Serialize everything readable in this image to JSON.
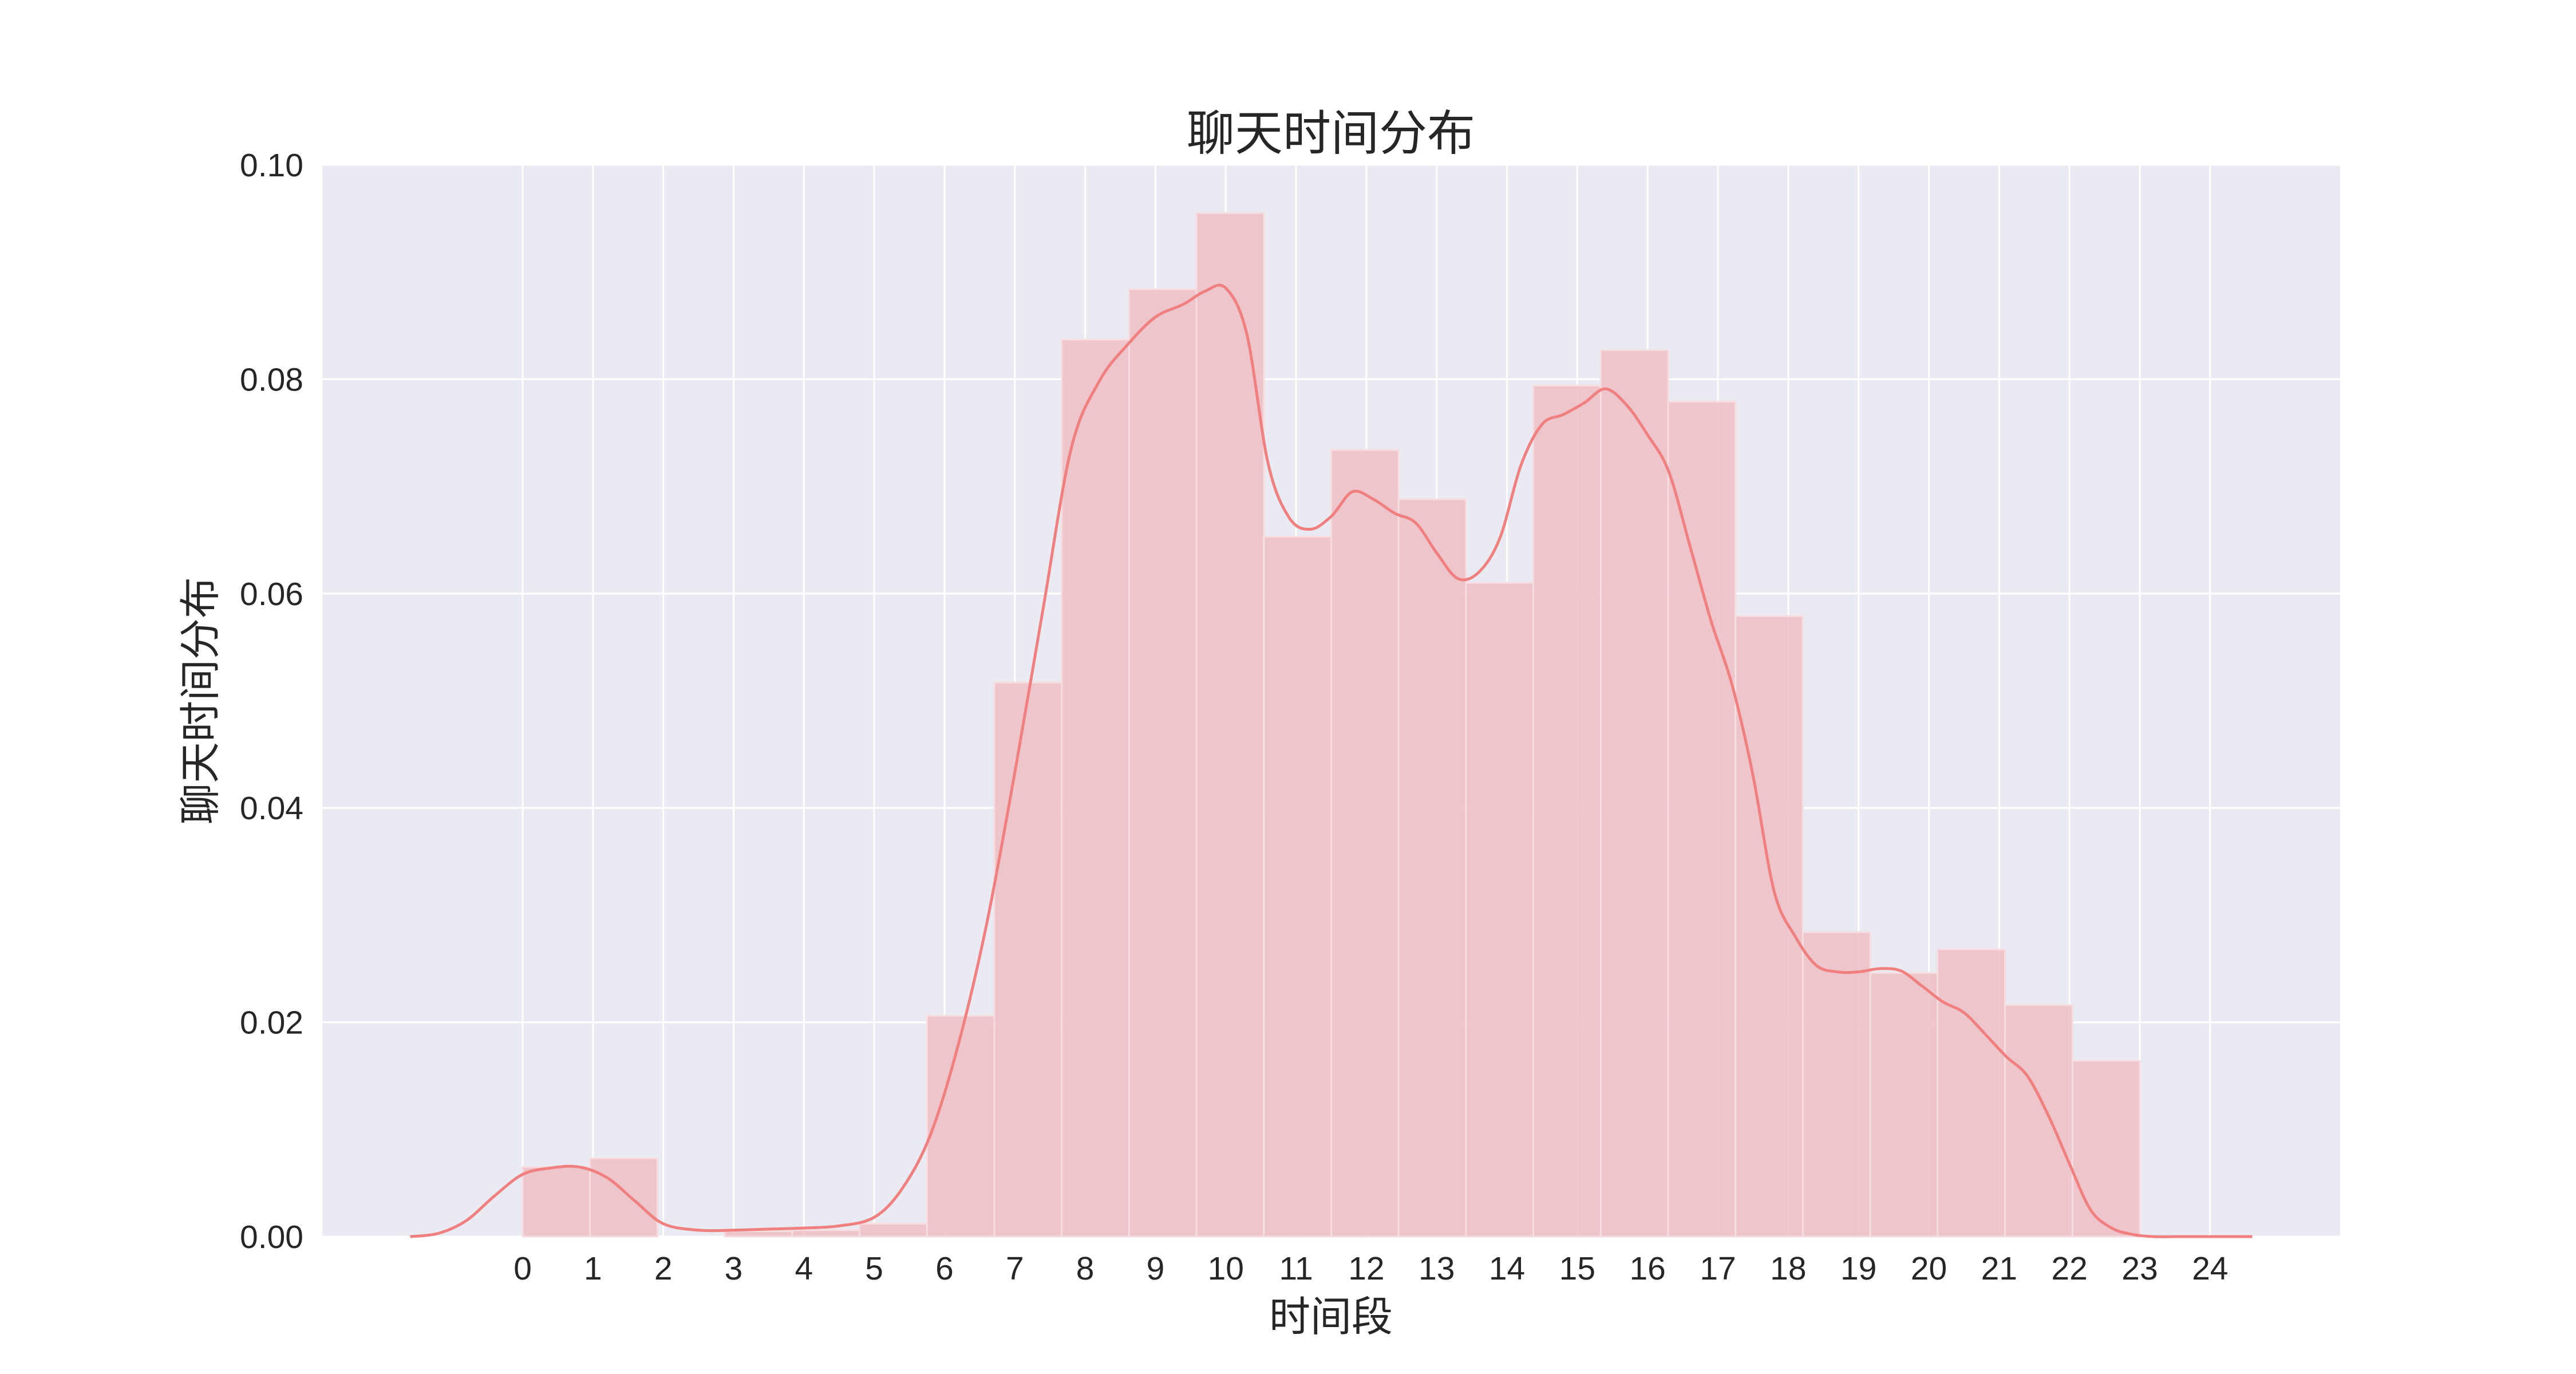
{
  "chart_data": {
    "type": "bar",
    "title": "聊天时间分布",
    "xlabel": "时间段",
    "ylabel": "聊天时间分布",
    "x_ticks": [
      0,
      1,
      2,
      3,
      4,
      5,
      6,
      7,
      8,
      9,
      10,
      11,
      12,
      13,
      14,
      15,
      16,
      17,
      18,
      19,
      20,
      21,
      22,
      23,
      24
    ],
    "x_tick_labels": [
      "0",
      "1",
      "2",
      "3",
      "4",
      "5",
      "6",
      "7",
      "8",
      "9",
      "10",
      "11",
      "12",
      "13",
      "14",
      "15",
      "16",
      "17",
      "18",
      "19",
      "20",
      "21",
      "22",
      "23",
      "24"
    ],
    "y_ticks": [
      0,
      0.02,
      0.04,
      0.06,
      0.08,
      0.1
    ],
    "y_tick_labels": [
      "0.00",
      "0.02",
      "0.04",
      "0.06",
      "0.08",
      "0.10"
    ],
    "xlim": [
      -2.85,
      25.85
    ],
    "ylim": [
      0,
      0.1
    ],
    "grid": true,
    "colors": {
      "background": "#eaeaf2",
      "bar": "#eebfc5",
      "kde": "#f08080",
      "grid": "#ffffff"
    },
    "histogram": {
      "bin_edges": [
        0,
        0.958,
        1.917,
        2.875,
        3.833,
        4.792,
        5.75,
        6.708,
        7.667,
        8.625,
        9.583,
        10.542,
        11.5,
        12.458,
        13.417,
        14.375,
        15.333,
        16.292,
        17.25,
        18.208,
        19.167,
        20.125,
        21.083,
        22.042,
        23.0
      ],
      "densities": [
        0.0065,
        0.0073,
        0,
        0.0005,
        0.0006,
        0.0012,
        0.0206,
        0.0517,
        0.0837,
        0.0884,
        0.0955,
        0.0653,
        0.0734,
        0.0688,
        0.061,
        0.0794,
        0.0827,
        0.0779,
        0.0579,
        0.0284,
        0.0246,
        0.0268,
        0.0216,
        0.0164
      ]
    },
    "kde": {
      "x": [
        -1.6,
        -1.2,
        -0.8,
        -0.4,
        0,
        0.4,
        0.8,
        1.2,
        1.6,
        2.0,
        2.5,
        3.0,
        3.5,
        4.0,
        4.5,
        5.0,
        5.4,
        5.8,
        6.2,
        6.6,
        7.0,
        7.4,
        7.8,
        8.2,
        8.6,
        9.0,
        9.4,
        9.7,
        10.0,
        10.3,
        10.6,
        10.9,
        11.2,
        11.5,
        11.8,
        12.1,
        12.4,
        12.7,
        13.0,
        13.3,
        13.6,
        13.9,
        14.2,
        14.5,
        14.8,
        15.1,
        15.4,
        15.7,
        16.0,
        16.3,
        16.6,
        16.9,
        17.2,
        17.5,
        17.8,
        18.1,
        18.4,
        18.7,
        19.0,
        19.3,
        19.6,
        19.9,
        20.2,
        20.5,
        20.8,
        21.1,
        21.4,
        21.7,
        22.0,
        22.3,
        22.6,
        22.9,
        23.2,
        23.5,
        23.8,
        24.1,
        24.4,
        24.6
      ],
      "y": [
        0,
        0.0003,
        0.0015,
        0.0038,
        0.0058,
        0.0064,
        0.0065,
        0.0055,
        0.0033,
        0.0012,
        0.0006,
        0.0006,
        0.0007,
        0.0008,
        0.001,
        0.0018,
        0.0045,
        0.0095,
        0.018,
        0.0292,
        0.0433,
        0.0585,
        0.0735,
        0.0798,
        0.0832,
        0.0858,
        0.087,
        0.0882,
        0.0885,
        0.0842,
        0.0722,
        0.0671,
        0.066,
        0.0672,
        0.0695,
        0.0688,
        0.0675,
        0.0666,
        0.0638,
        0.0614,
        0.062,
        0.0652,
        0.072,
        0.0758,
        0.0767,
        0.0778,
        0.0791,
        0.0776,
        0.0748,
        0.0714,
        0.0645,
        0.0575,
        0.0515,
        0.043,
        0.0322,
        0.028,
        0.0253,
        0.0247,
        0.0247,
        0.025,
        0.0248,
        0.0234,
        0.0219,
        0.0209,
        0.0189,
        0.0168,
        0.015,
        0.0113,
        0.0068,
        0.0025,
        0.0008,
        0.0002,
        0.0,
        0.0,
        0.0,
        0.0,
        0.0,
        0.0
      ]
    }
  }
}
